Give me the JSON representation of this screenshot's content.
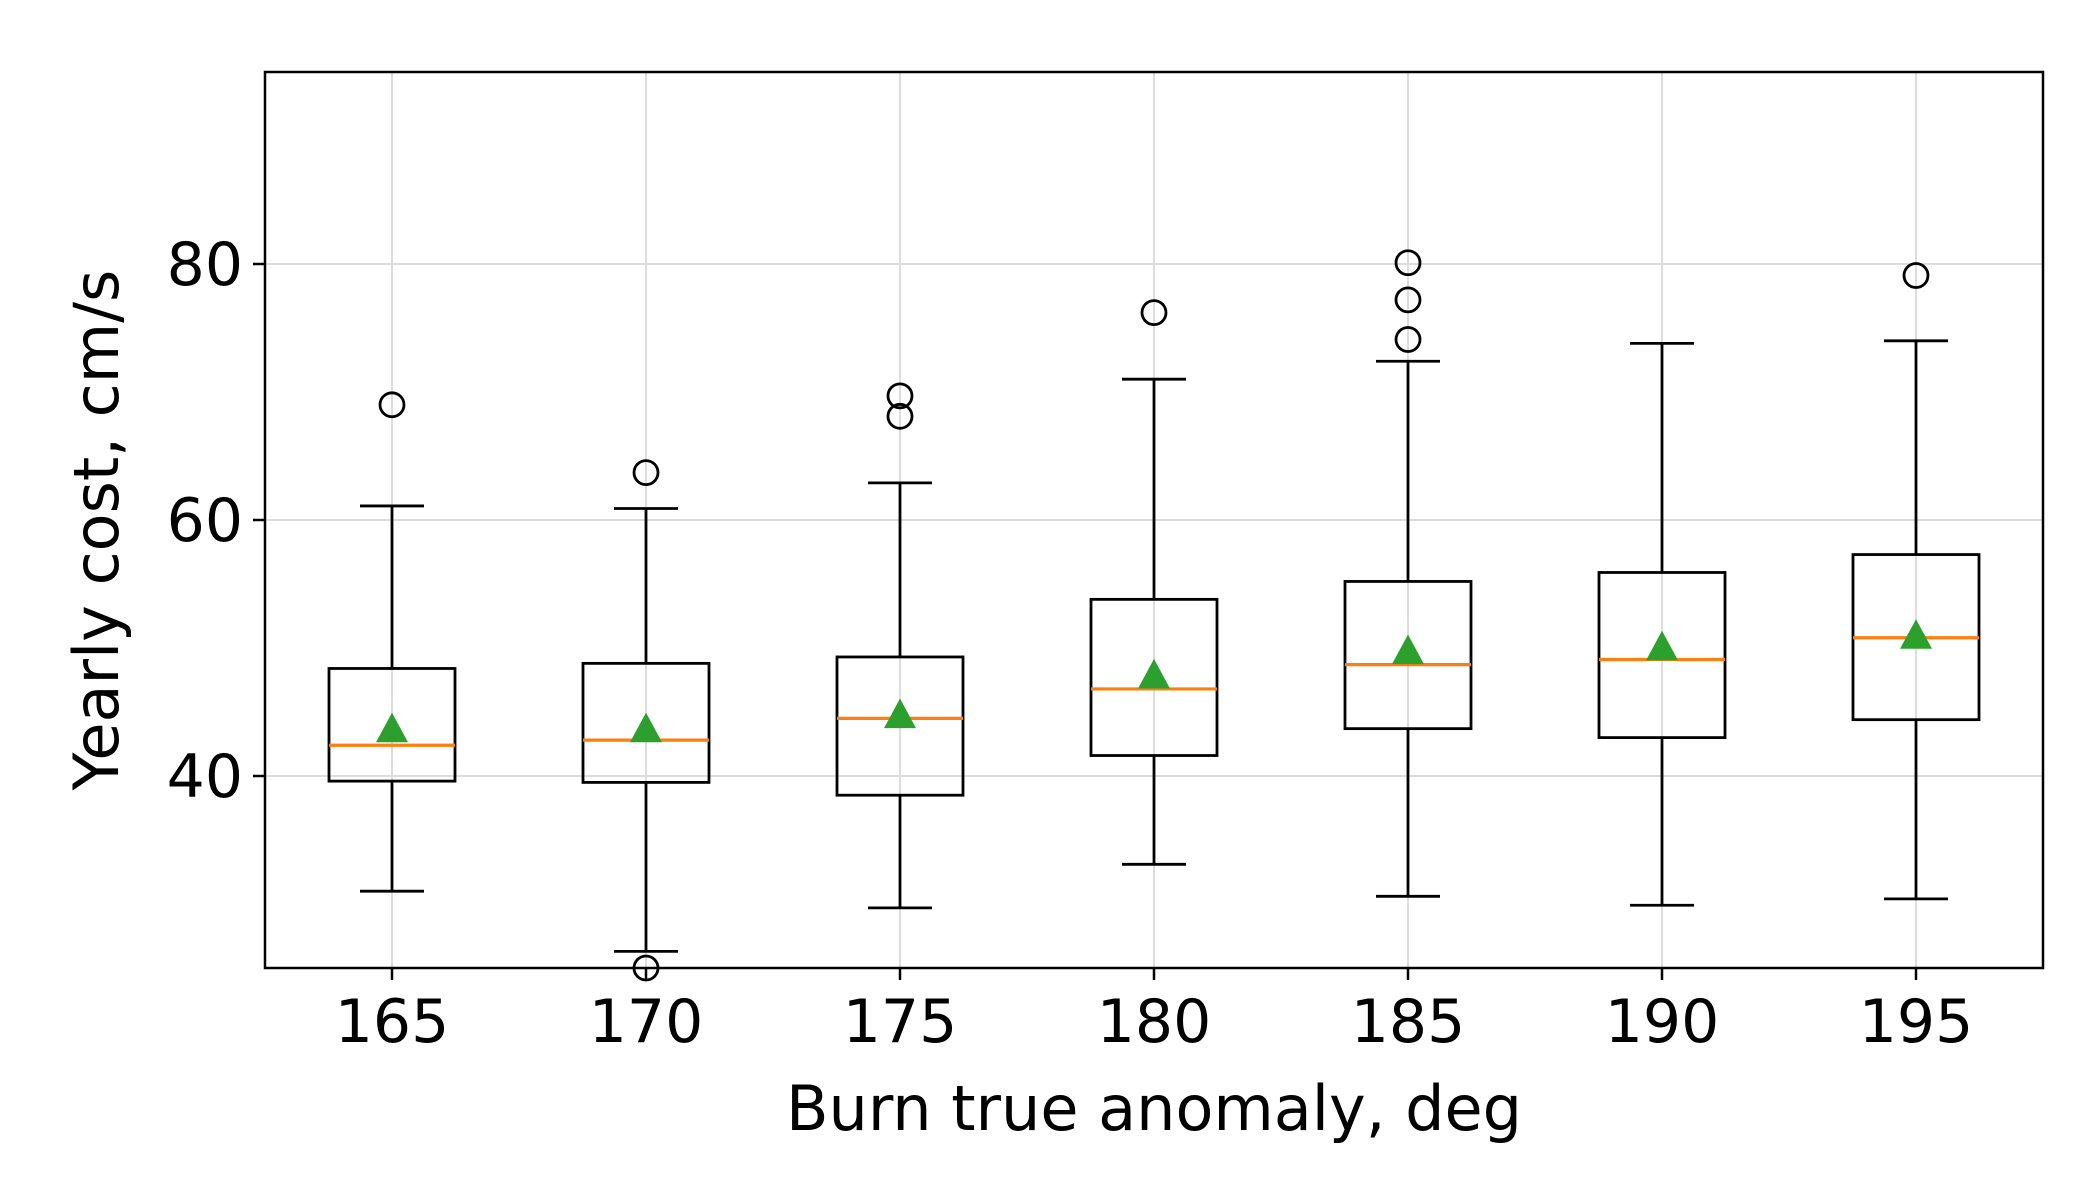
{
  "chart_data": {
    "type": "box",
    "title": "",
    "xlabel": "Burn true anomaly, deg",
    "ylabel": "Yearly cost, cm/s",
    "ylim": [
      25,
      95
    ],
    "yticks": [
      40,
      60,
      80
    ],
    "grid": true,
    "colors": {
      "box": "#000000",
      "median": "#ff7f0e",
      "mean": "#2ca02c",
      "grid": "#dddddd"
    },
    "categories": [
      "165",
      "170",
      "175",
      "180",
      "185",
      "190",
      "195"
    ],
    "boxes": [
      {
        "label": "165",
        "whisker_low": 31.0,
        "q1": 39.6,
        "median": 42.4,
        "q3": 48.4,
        "whisker_high": 61.1,
        "mean": 43.7,
        "outliers": [
          69.0
        ]
      },
      {
        "label": "170",
        "whisker_low": 26.3,
        "q1": 39.5,
        "median": 42.8,
        "q3": 48.8,
        "whisker_high": 60.9,
        "mean": 43.7,
        "outliers": [
          25.0,
          63.7
        ]
      },
      {
        "label": "175",
        "whisker_low": 29.7,
        "q1": 38.5,
        "median": 44.5,
        "q3": 49.3,
        "whisker_high": 62.9,
        "mean": 44.8,
        "outliers": [
          68.1,
          69.7
        ]
      },
      {
        "label": "180",
        "whisker_low": 33.1,
        "q1": 41.6,
        "median": 46.8,
        "q3": 53.8,
        "whisker_high": 71.0,
        "mean": 47.9,
        "outliers": [
          76.2
        ]
      },
      {
        "label": "185",
        "whisker_low": 30.6,
        "q1": 43.7,
        "median": 48.7,
        "q3": 55.2,
        "whisker_high": 72.4,
        "mean": 49.8,
        "outliers": [
          74.1,
          77.2,
          80.1
        ]
      },
      {
        "label": "190",
        "whisker_low": 29.9,
        "q1": 43.0,
        "median": 49.1,
        "q3": 55.9,
        "whisker_high": 73.8,
        "mean": 50.1,
        "outliers": []
      },
      {
        "label": "195",
        "whisker_low": 30.4,
        "q1": 44.4,
        "median": 50.8,
        "q3": 57.3,
        "whisker_high": 74.0,
        "mean": 51.0,
        "outliers": [
          79.1
        ]
      }
    ]
  }
}
